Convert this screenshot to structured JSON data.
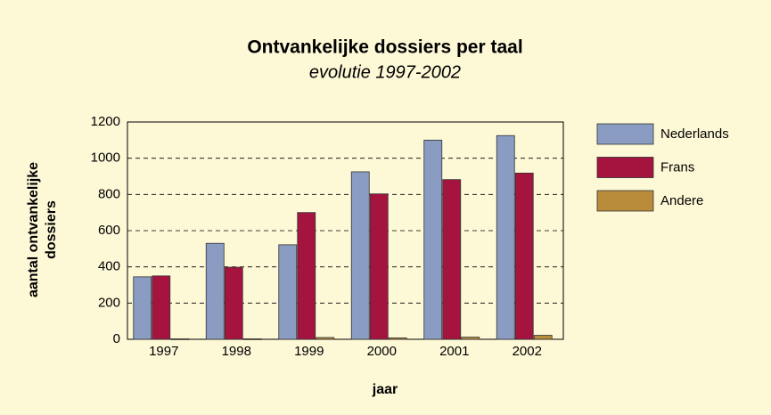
{
  "chart_data": {
    "type": "bar",
    "title": "Ontvankelijke dossiers per taal",
    "subtitle": "evolutie 1997-2002",
    "xlabel": "jaar",
    "ylabel": [
      "aantal ontvankelijke",
      "dossiers"
    ],
    "categories": [
      "1997",
      "1998",
      "1999",
      "2000",
      "2001",
      "2002"
    ],
    "series": [
      {
        "name": "Nederlands",
        "color": "#8a9cc2",
        "values": [
          345,
          530,
          522,
          925,
          1100,
          1125
        ]
      },
      {
        "name": "Frans",
        "color": "#a5143f",
        "values": [
          350,
          398,
          700,
          803,
          882,
          918
        ]
      },
      {
        "name": "Andere",
        "color": "#b98c3b",
        "values": [
          3,
          3,
          10,
          8,
          12,
          22
        ]
      }
    ],
    "ylim": [
      0,
      1200
    ],
    "yticks": [
      0,
      200,
      400,
      600,
      800,
      1000,
      1200
    ],
    "grid": true,
    "legend": "right"
  }
}
